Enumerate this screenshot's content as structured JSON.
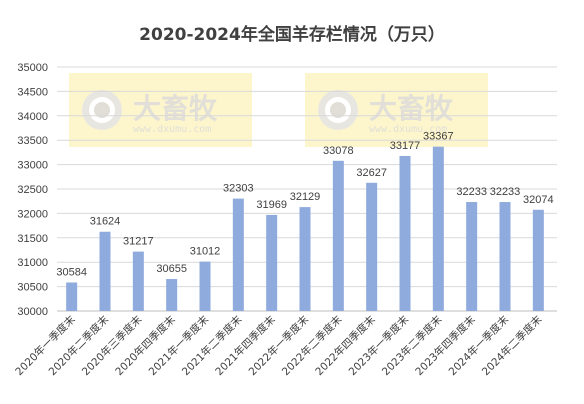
{
  "chart_data": {
    "type": "bar",
    "title": "2020-2024年全国羊存栏情况（万只）",
    "categories": [
      "2020年一季度末",
      "2020年二季度末",
      "2020年三季度末",
      "2020年四季度末",
      "2021年一季度末",
      "2021年二季度末",
      "2021年四季度末",
      "2022年一季度末",
      "2022年二季度末",
      "2022年四季度末",
      "2023年一季度末",
      "2023年二季度末",
      "2023年四季度末",
      "2024年一季度末",
      "2024年二季度末"
    ],
    "values": [
      30584,
      31624,
      31217,
      30655,
      31012,
      32303,
      31969,
      32129,
      33078,
      32627,
      33177,
      33367,
      32233,
      32233,
      32074
    ],
    "ylim": [
      30000,
      35000
    ],
    "yticks": [
      30000,
      30500,
      31000,
      31500,
      32000,
      32500,
      33000,
      33500,
      34000,
      34500,
      35000
    ],
    "grid": true,
    "bar_color": "#8faadc",
    "gridline_color": "#d9d9d9"
  },
  "watermark": {
    "brand": "大畜牧",
    "url": "www.dxumu.com",
    "box_color": "#fdf6cc",
    "icon": "eye-camera-icon"
  }
}
